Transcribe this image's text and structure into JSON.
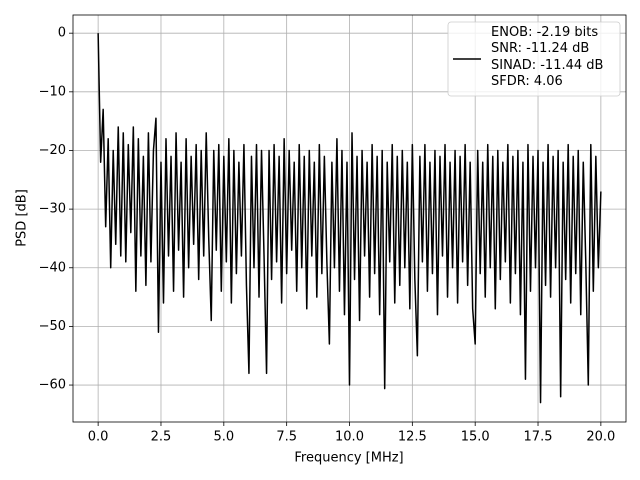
{
  "chart_data": {
    "type": "line",
    "xlabel": "Frequency [MHz]",
    "ylabel": "PSD [dB]",
    "x": [
      0,
      0.1,
      0.2,
      0.3,
      0.4,
      0.5,
      0.6,
      0.7,
      0.8,
      0.9,
      1,
      1.1,
      1.2,
      1.3,
      1.4,
      1.5,
      1.6,
      1.7,
      1.8,
      1.9,
      2,
      2.1,
      2.2,
      2.3,
      2.4,
      2.5,
      2.6,
      2.7,
      2.8,
      2.9,
      3,
      3.1,
      3.2,
      3.3,
      3.4,
      3.5,
      3.6,
      3.7,
      3.8,
      3.9,
      4,
      4.1,
      4.2,
      4.3,
      4.4,
      4.5,
      4.6,
      4.7,
      4.8,
      4.9,
      5,
      5.1,
      5.2,
      5.3,
      5.4,
      5.5,
      5.6,
      5.7,
      5.8,
      5.9,
      6,
      6.1,
      6.2,
      6.3,
      6.4,
      6.5,
      6.6,
      6.7,
      6.8,
      6.9,
      7,
      7.1,
      7.2,
      7.3,
      7.4,
      7.5,
      7.6,
      7.7,
      7.8,
      7.9,
      8,
      8.1,
      8.2,
      8.3,
      8.4,
      8.5,
      8.6,
      8.7,
      8.8,
      8.9,
      9,
      9.1,
      9.2,
      9.3,
      9.4,
      9.5,
      9.6,
      9.7,
      9.8,
      9.9,
      10,
      10.1,
      10.2,
      10.3,
      10.4,
      10.5,
      10.6,
      10.7,
      10.8,
      10.9,
      11,
      11.1,
      11.2,
      11.3,
      11.4,
      11.5,
      11.6,
      11.7,
      11.8,
      11.9,
      12,
      12.1,
      12.2,
      12.3,
      12.4,
      12.5,
      12.6,
      12.7,
      12.8,
      12.9,
      13,
      13.1,
      13.2,
      13.3,
      13.4,
      13.5,
      13.6,
      13.7,
      13.8,
      13.9,
      14,
      14.1,
      14.2,
      14.3,
      14.4,
      14.5,
      14.6,
      14.7,
      14.8,
      14.9,
      15,
      15.1,
      15.2,
      15.3,
      15.4,
      15.5,
      15.6,
      15.7,
      15.8,
      15.9,
      16,
      16.1,
      16.2,
      16.3,
      16.4,
      16.5,
      16.6,
      16.7,
      16.8,
      16.9,
      17,
      17.1,
      17.2,
      17.3,
      17.4,
      17.5,
      17.6,
      17.7,
      17.8,
      17.9,
      18,
      18.1,
      18.2,
      18.3,
      18.4,
      18.5,
      18.6,
      18.7,
      18.8,
      18.9,
      19,
      19.1,
      19.2,
      19.3,
      19.4,
      19.5,
      19.6,
      19.7,
      19.8,
      19.9,
      20
    ],
    "series": [
      {
        "name": "ENOB: -2.19 bits\nSNR: -11.24 dB\nSINAD: -11.44 dB\nSFDR: 4.06",
        "color": "#000000",
        "values": [
          0,
          -22,
          -13,
          -33,
          -18,
          -40,
          -20,
          -36,
          -16,
          -38,
          -17,
          -39,
          -19,
          -34,
          -16,
          -44,
          -18,
          -38,
          -21,
          -43,
          -17,
          -39,
          -20,
          -14.5,
          -51,
          -22,
          -46,
          -18,
          -38,
          -21,
          -44,
          -17,
          -37,
          -22,
          -45,
          -18,
          -40,
          -21,
          -36,
          -19,
          -42,
          -20,
          -38,
          -17,
          -35,
          -49,
          -20,
          -37,
          -19,
          -44,
          -21,
          -39,
          -18,
          -46,
          -20,
          -41,
          -22,
          -38,
          -19,
          -43,
          -58,
          -21,
          -40,
          -19,
          -45,
          -20,
          -38,
          -58,
          -20,
          -42,
          -19,
          -39,
          -21,
          -46,
          -18,
          -41,
          -20,
          -37,
          -22,
          -44,
          -19,
          -40,
          -21,
          -47,
          -20,
          -38,
          -22,
          -45,
          -19,
          -41,
          -21,
          -39,
          -53,
          -22,
          -40,
          -18,
          -44,
          -20,
          -48,
          -22,
          -60,
          -17,
          -42,
          -21,
          -49,
          -20,
          -38,
          -22,
          -45,
          -19,
          -41,
          -21,
          -48,
          -20,
          -60.6,
          -22,
          -39,
          -19,
          -46,
          -21,
          -43,
          -20,
          -40,
          -22,
          -47,
          -19,
          -42,
          -55,
          -21,
          -39,
          -19,
          -44,
          -22,
          -41,
          -20,
          -48,
          -21,
          -38,
          -19,
          -45,
          -22,
          -40,
          -20,
          -46,
          -21,
          -39,
          -19,
          -43,
          -22,
          -47,
          -53,
          -20,
          -41,
          -22,
          -45,
          -19,
          -40,
          -21,
          -47,
          -20,
          -42,
          -22,
          -39,
          -19,
          -46,
          -21,
          -41,
          -20,
          -48,
          -22,
          -59,
          -19,
          -44,
          -21,
          -40,
          -20,
          -63,
          -22,
          -43,
          -19,
          -45,
          -21,
          -40,
          -20,
          -62,
          -22,
          -42,
          -19,
          -46,
          -21,
          -41,
          -20,
          -48,
          -22,
          -39,
          -60,
          -19,
          -44,
          -21,
          -40,
          -27
        ]
      }
    ],
    "xlim": [
      -1,
      21
    ],
    "ylim": [
      -66.3,
      3.1
    ],
    "xticks": [
      {
        "value": 0,
        "label": "0.0"
      },
      {
        "value": 2.5,
        "label": "2.5"
      },
      {
        "value": 5,
        "label": "5.0"
      },
      {
        "value": 7.5,
        "label": "7.5"
      },
      {
        "value": 10,
        "label": "10.0"
      },
      {
        "value": 12.5,
        "label": "12.5"
      },
      {
        "value": 15,
        "label": "15.0"
      },
      {
        "value": 17.5,
        "label": "17.5"
      },
      {
        "value": 20,
        "label": "20.0"
      }
    ],
    "yticks": [
      0,
      {
        "value": -10,
        "label": "−10"
      },
      {
        "value": -20,
        "label": "−20"
      },
      {
        "value": -30,
        "label": "−30"
      },
      {
        "value": -40,
        "label": "−40"
      },
      {
        "value": -50,
        "label": "−50"
      },
      {
        "value": -60,
        "label": "−60"
      }
    ],
    "grid": true,
    "legend": "upper right"
  }
}
